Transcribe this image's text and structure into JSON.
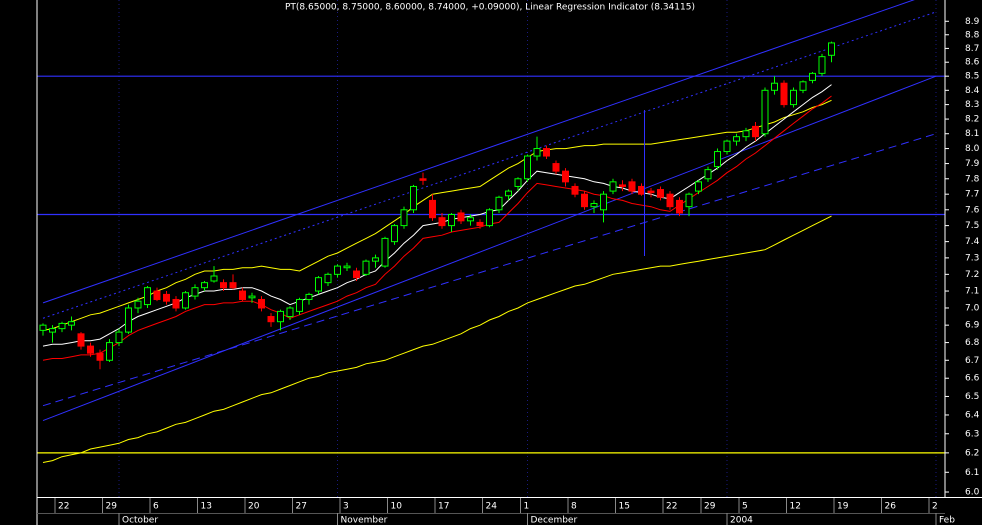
{
  "chart_data": {
    "type": "candlestick",
    "title": "PT(8.65000, 8.75000, 8.60000, 8.74000, +0.09000), Linear Regression Indicator (8.34115)",
    "log_scale": true,
    "ylim": [
      5.975,
      9.06
    ],
    "yticks": [
      {
        "value": 6,
        "label": "6.0"
      },
      6.1,
      6.2,
      6.3,
      6.4,
      6.5,
      6.6,
      6.7,
      6.8,
      6.9,
      {
        "value": 7,
        "label": "7.0"
      },
      7.1,
      7.2,
      7.3,
      7.4,
      7.5,
      7.6,
      7.7,
      7.8,
      7.9,
      {
        "value": 8,
        "label": "8.0"
      },
      8.1,
      8.2,
      8.3,
      8.4,
      8.5,
      8.6,
      8.7,
      8.8,
      8.9
    ],
    "categories": [
      null,
      null,
      "22",
      null,
      null,
      null,
      null,
      "29",
      null,
      null,
      null,
      null,
      "6",
      null,
      null,
      null,
      null,
      "13",
      null,
      null,
      null,
      null,
      "20",
      null,
      null,
      null,
      null,
      "27",
      null,
      null,
      null,
      null,
      "3",
      null,
      null,
      null,
      null,
      "10",
      null,
      null,
      null,
      null,
      "17",
      null,
      null,
      null,
      null,
      "24",
      null,
      null,
      null,
      "1",
      null,
      null,
      null,
      null,
      "8",
      null,
      null,
      null,
      null,
      "15",
      null,
      null,
      null,
      null,
      "22",
      null,
      null,
      null,
      "29",
      null,
      null,
      null,
      "5",
      null,
      null,
      null,
      null,
      "12",
      null,
      null,
      null,
      null,
      "19",
      null,
      null,
      null,
      null,
      "26",
      null,
      null,
      null,
      null,
      "2"
    ],
    "months": [
      null,
      null,
      null,
      null,
      null,
      null,
      null,
      null,
      "October",
      null,
      null,
      null,
      null,
      null,
      null,
      null,
      null,
      null,
      null,
      null,
      null,
      null,
      null,
      null,
      null,
      null,
      null,
      null,
      null,
      null,
      null,
      "November",
      null,
      null,
      null,
      null,
      null,
      null,
      null,
      null,
      null,
      null,
      null,
      null,
      null,
      null,
      null,
      null,
      null,
      null,
      null,
      "December",
      null,
      null,
      null,
      null,
      null,
      null,
      null,
      null,
      null,
      null,
      null,
      null,
      null,
      null,
      null,
      null,
      null,
      null,
      null,
      null,
      "2004",
      null,
      null,
      null,
      null,
      null,
      null,
      null,
      null,
      null,
      null,
      null,
      null,
      null,
      null,
      null,
      null,
      null,
      null,
      null,
      null,
      null,
      "Feb"
    ],
    "up_color": "#00ff00",
    "down_color": "#ff0000",
    "ohlc": [
      [
        6.87,
        6.91,
        6.84,
        6.9
      ],
      [
        6.86,
        6.9,
        6.8,
        6.88
      ],
      [
        6.88,
        6.92,
        6.86,
        6.91
      ],
      [
        6.9,
        6.95,
        6.87,
        6.92
      ],
      [
        6.85,
        6.86,
        6.76,
        6.78
      ],
      [
        6.78,
        6.8,
        6.72,
        6.74
      ],
      [
        6.74,
        6.76,
        6.65,
        6.7
      ],
      [
        6.7,
        6.82,
        6.69,
        6.8
      ],
      [
        6.8,
        6.88,
        6.78,
        6.86
      ],
      [
        6.86,
        7.02,
        6.85,
        7.0
      ],
      [
        7.0,
        7.06,
        6.97,
        7.04
      ],
      [
        7.02,
        7.13,
        7.0,
        7.12
      ],
      [
        7.1,
        7.12,
        7.04,
        7.05
      ],
      [
        7.08,
        7.1,
        7.02,
        7.04
      ],
      [
        7.05,
        7.07,
        6.98,
        7.0
      ],
      [
        7.0,
        7.1,
        6.99,
        7.09
      ],
      [
        7.07,
        7.14,
        7.05,
        7.12
      ],
      [
        7.12,
        7.16,
        7.1,
        7.15
      ],
      [
        7.16,
        7.25,
        7.15,
        7.19
      ],
      [
        7.15,
        7.17,
        7.1,
        7.12
      ],
      [
        7.15,
        7.2,
        7.11,
        7.12
      ],
      [
        7.1,
        7.12,
        7.04,
        7.05
      ],
      [
        7.06,
        7.09,
        7.03,
        7.07
      ],
      [
        7.05,
        7.07,
        6.98,
        7.0
      ],
      [
        6.95,
        6.97,
        6.89,
        6.92
      ],
      [
        6.92,
        6.99,
        6.87,
        6.98
      ],
      [
        6.95,
        7.01,
        6.93,
        7.0
      ],
      [
        6.98,
        7.06,
        6.96,
        7.05
      ],
      [
        7.05,
        7.09,
        7.02,
        7.08
      ],
      [
        7.1,
        7.19,
        7.08,
        7.18
      ],
      [
        7.15,
        7.21,
        7.13,
        7.2
      ],
      [
        7.2,
        7.26,
        7.18,
        7.25
      ],
      [
        7.24,
        7.27,
        7.22,
        7.25
      ],
      [
        7.22,
        7.24,
        7.16,
        7.18
      ],
      [
        7.2,
        7.29,
        7.19,
        7.28
      ],
      [
        7.28,
        7.32,
        7.24,
        7.3
      ],
      [
        7.25,
        7.43,
        7.24,
        7.42
      ],
      [
        7.4,
        7.51,
        7.38,
        7.5
      ],
      [
        7.5,
        7.62,
        7.48,
        7.6
      ],
      [
        7.6,
        7.76,
        7.58,
        7.75
      ],
      [
        7.8,
        7.84,
        7.76,
        7.79
      ],
      [
        7.66,
        7.7,
        7.53,
        7.55
      ],
      [
        7.55,
        7.58,
        7.48,
        7.5
      ],
      [
        7.5,
        7.58,
        7.46,
        7.57
      ],
      [
        7.58,
        7.6,
        7.51,
        7.53
      ],
      [
        7.53,
        7.57,
        7.5,
        7.55
      ],
      [
        7.52,
        7.54,
        7.48,
        7.5
      ],
      [
        7.5,
        7.61,
        7.49,
        7.6
      ],
      [
        7.6,
        7.69,
        7.58,
        7.68
      ],
      [
        7.69,
        7.73,
        7.66,
        7.72
      ],
      [
        7.75,
        7.81,
        7.72,
        7.8
      ],
      [
        7.8,
        7.96,
        7.78,
        7.95
      ],
      [
        7.95,
        8.08,
        7.92,
        8.0
      ],
      [
        8.0,
        8.02,
        7.93,
        7.95
      ],
      [
        7.9,
        7.92,
        7.83,
        7.85
      ],
      [
        7.85,
        7.87,
        7.75,
        7.78
      ],
      [
        7.75,
        7.77,
        7.68,
        7.7
      ],
      [
        7.7,
        7.72,
        7.6,
        7.62
      ],
      [
        7.62,
        7.66,
        7.58,
        7.64
      ],
      [
        7.6,
        7.72,
        7.52,
        7.7
      ],
      [
        7.72,
        7.8,
        7.7,
        7.78
      ],
      [
        7.76,
        7.79,
        7.72,
        7.75
      ],
      [
        7.78,
        7.8,
        7.7,
        7.72
      ],
      [
        7.75,
        7.77,
        7.69,
        7.7
      ],
      [
        7.72,
        7.74,
        7.68,
        7.71
      ],
      [
        7.73,
        7.75,
        7.66,
        7.68
      ],
      [
        7.7,
        7.72,
        7.6,
        7.62
      ],
      [
        7.66,
        7.68,
        7.56,
        7.58
      ],
      [
        7.62,
        7.71,
        7.56,
        7.7
      ],
      [
        7.72,
        7.79,
        7.7,
        7.78
      ],
      [
        7.8,
        7.88,
        7.78,
        7.86
      ],
      [
        7.88,
        8.0,
        7.86,
        7.98
      ],
      [
        7.98,
        8.06,
        7.96,
        8.05
      ],
      [
        8.05,
        8.1,
        8.02,
        8.08
      ],
      [
        8.08,
        8.14,
        8.05,
        8.12
      ],
      [
        8.15,
        8.18,
        8.05,
        8.08
      ],
      [
        8.1,
        8.42,
        8.08,
        8.4
      ],
      [
        8.4,
        8.5,
        8.37,
        8.45
      ],
      [
        8.45,
        8.47,
        8.28,
        8.3
      ],
      [
        8.3,
        8.42,
        8.28,
        8.4
      ],
      [
        8.4,
        8.47,
        8.38,
        8.46
      ],
      [
        8.47,
        8.53,
        8.45,
        8.52
      ],
      [
        8.52,
        8.66,
        8.5,
        8.64
      ],
      [
        8.65,
        8.75,
        8.6,
        8.74
      ],
      null,
      null,
      null,
      null,
      null,
      null,
      null,
      null,
      null,
      null,
      null
    ],
    "series": [
      {
        "color": "#ffff00",
        "values": [
          6.87,
          6.88,
          6.9,
          6.92,
          6.94,
          6.96,
          6.97,
          6.99,
          7.01,
          7.03,
          7.05,
          7.07,
          7.1,
          7.12,
          7.15,
          7.17,
          7.2,
          7.22,
          7.22,
          7.23,
          7.23,
          7.24,
          7.24,
          7.25,
          7.24,
          7.23,
          7.23,
          7.22,
          7.25,
          7.28,
          7.31,
          7.33,
          7.36,
          7.39,
          7.42,
          7.45,
          7.49,
          7.53,
          7.57,
          7.62,
          7.66,
          7.7,
          7.71,
          7.72,
          7.73,
          7.74,
          7.75,
          7.79,
          7.83,
          7.87,
          7.9,
          7.94,
          7.98,
          7.99,
          8.0,
          8.0,
          8.01,
          8.02,
          8.02,
          8.03,
          8.03,
          8.03,
          8.03,
          8.03,
          8.03,
          8.04,
          8.05,
          8.06,
          8.07,
          8.08,
          8.09,
          8.1,
          8.11,
          8.11,
          8.12,
          8.14,
          8.16,
          8.18,
          8.21,
          8.23,
          8.25,
          8.28,
          8.3,
          8.33,
          null,
          null,
          null,
          null,
          null,
          null,
          null,
          null,
          null,
          null,
          null
        ]
      },
      {
        "color": "#ff0000",
        "values": [
          6.7,
          6.71,
          6.71,
          6.72,
          6.73,
          6.73,
          6.74,
          6.77,
          6.8,
          6.84,
          6.87,
          6.89,
          6.91,
          6.93,
          6.95,
          6.98,
          7.0,
          7.02,
          7.02,
          7.03,
          7.03,
          7.04,
          7.04,
          7.02,
          6.99,
          6.97,
          6.94,
          6.96,
          6.98,
          7.0,
          7.02,
          7.04,
          7.07,
          7.09,
          7.12,
          7.14,
          7.2,
          7.25,
          7.31,
          7.36,
          7.42,
          7.43,
          7.44,
          7.46,
          7.47,
          7.48,
          7.49,
          7.51,
          7.52,
          7.58,
          7.64,
          7.71,
          7.77,
          7.76,
          7.75,
          7.74,
          7.73,
          7.72,
          7.7,
          7.69,
          7.67,
          7.66,
          7.64,
          7.63,
          7.62,
          7.6,
          7.59,
          7.63,
          7.67,
          7.71,
          7.75,
          7.79,
          7.84,
          7.88,
          7.93,
          7.97,
          8.02,
          8.07,
          8.12,
          8.17,
          8.22,
          8.27,
          8.31,
          8.36,
          null,
          null,
          null,
          null,
          null,
          null,
          null,
          null,
          null,
          null,
          null
        ]
      },
      {
        "color": "#ffffff",
        "values": [
          6.78,
          6.79,
          6.79,
          6.8,
          6.81,
          6.81,
          6.82,
          6.85,
          6.88,
          6.92,
          6.95,
          6.97,
          6.99,
          7.01,
          7.03,
          7.06,
          7.08,
          7.1,
          7.1,
          7.11,
          7.11,
          7.12,
          7.12,
          7.1,
          7.07,
          7.05,
          7.02,
          7.04,
          7.06,
          7.08,
          7.1,
          7.12,
          7.15,
          7.17,
          7.2,
          7.22,
          7.28,
          7.33,
          7.39,
          7.44,
          7.5,
          7.51,
          7.52,
          7.54,
          7.55,
          7.56,
          7.57,
          7.59,
          7.6,
          7.66,
          7.72,
          7.79,
          7.85,
          7.84,
          7.83,
          7.82,
          7.81,
          7.8,
          7.78,
          7.77,
          7.75,
          7.74,
          7.72,
          7.71,
          7.7,
          7.68,
          7.67,
          7.71,
          7.75,
          7.79,
          7.83,
          7.87,
          7.92,
          7.96,
          8.01,
          8.05,
          8.1,
          8.15,
          8.2,
          8.25,
          8.3,
          8.35,
          8.39,
          8.44,
          null,
          null,
          null,
          null,
          null,
          null,
          null,
          null,
          null,
          null,
          null
        ]
      },
      {
        "color": "#ffff00",
        "values": [
          6.15,
          6.16,
          6.18,
          6.19,
          6.2,
          6.22,
          6.23,
          6.24,
          6.25,
          6.27,
          6.28,
          6.3,
          6.31,
          6.33,
          6.35,
          6.36,
          6.38,
          6.4,
          6.42,
          6.43,
          6.45,
          6.47,
          6.49,
          6.51,
          6.52,
          6.54,
          6.56,
          6.58,
          6.6,
          6.61,
          6.63,
          6.64,
          6.65,
          6.66,
          6.68,
          6.69,
          6.7,
          6.72,
          6.74,
          6.76,
          6.78,
          6.79,
          6.81,
          6.83,
          6.85,
          6.88,
          6.9,
          6.93,
          6.95,
          6.98,
          7.0,
          7.03,
          7.05,
          7.07,
          7.09,
          7.11,
          7.13,
          7.14,
          7.16,
          7.18,
          7.2,
          7.21,
          7.22,
          7.23,
          7.24,
          7.25,
          7.25,
          7.26,
          7.27,
          7.28,
          7.29,
          7.3,
          7.31,
          7.32,
          7.33,
          7.34,
          7.35,
          7.38,
          7.41,
          7.44,
          7.47,
          7.5,
          7.53,
          7.56,
          null,
          null,
          null,
          null,
          null,
          null,
          null,
          null,
          null,
          null,
          null
        ]
      }
    ],
    "trend_lines": [
      {
        "color": "#3030ff",
        "style": "solid",
        "start": 7.03,
        "end": 9.12
      },
      {
        "color": "#3030ff",
        "style": "dotted",
        "start": 6.94,
        "end": 8.97
      },
      {
        "color": "#3030ff",
        "style": "dashed",
        "start": 6.45,
        "end": 8.1
      },
      {
        "color": "#3030ff",
        "style": "solid",
        "start": 6.37,
        "end": 8.5
      }
    ],
    "hlines": [
      {
        "value": 8.5,
        "color": "#3030ff"
      },
      {
        "value": 7.57,
        "color": "#3030ff"
      },
      {
        "value": 6.2,
        "color": "#ffff00"
      }
    ]
  }
}
